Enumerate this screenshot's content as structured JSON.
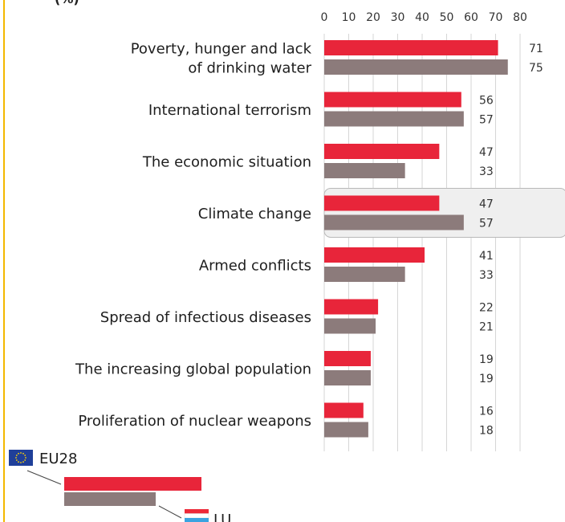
{
  "chart_data": {
    "type": "bar",
    "orientation": "horizontal",
    "unit_label": "(%)",
    "categories": [
      [
        "Poverty, hunger and lack",
        "of drinking water"
      ],
      [
        "International terrorism"
      ],
      [
        "The economic situation"
      ],
      [
        "Climate change"
      ],
      [
        "Armed conflicts"
      ],
      [
        "Spread of infectious diseases"
      ],
      [
        "The increasing global population"
      ],
      [
        "Proliferation of nuclear weapons"
      ]
    ],
    "series": [
      {
        "name": "EU28",
        "color": "#e8253a",
        "values": [
          71,
          56,
          47,
          47,
          41,
          22,
          19,
          16
        ]
      },
      {
        "name": "LU",
        "color": "#8c7b7b",
        "values": [
          75,
          57,
          33,
          57,
          33,
          21,
          19,
          18
        ]
      }
    ],
    "xlim": [
      0,
      80
    ],
    "xticks": [
      0,
      10,
      20,
      30,
      40,
      50,
      60,
      70,
      80
    ],
    "grid": true,
    "highlighted_category": "Climate change",
    "legend_placement": "bottom-left"
  }
}
